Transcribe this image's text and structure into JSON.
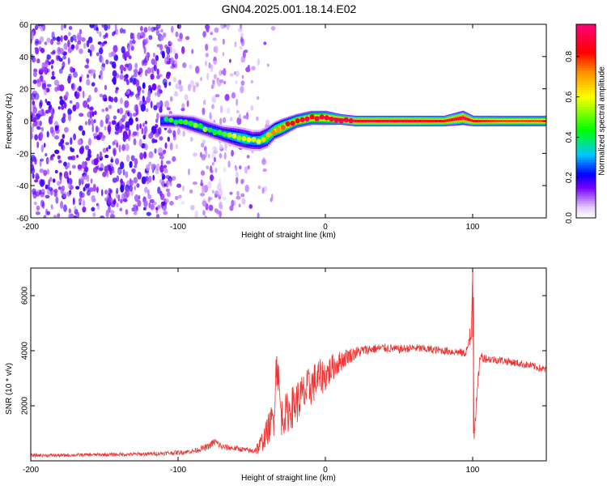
{
  "title": "GN04.2025.001.18.14.E02",
  "chart_data": [
    {
      "type": "heatmap",
      "title": "GN04.2025.001.18.14.E02",
      "xlabel": "Height of straight line (km)",
      "ylabel": "Frequency (Hz)",
      "xlim": [
        -200,
        150
      ],
      "ylim": [
        -60,
        60
      ],
      "xticks": [
        -200,
        -100,
        0,
        100
      ],
      "yticks": [
        -60,
        -40,
        -20,
        0,
        20,
        40,
        60
      ],
      "colorbar": {
        "label": "Normalized spectral amplitude",
        "range": [
          0,
          0.96
        ],
        "ticks": [
          0.0,
          0.2,
          0.4,
          0.6,
          0.8
        ],
        "colormap": [
          "#ffffff",
          "#7a00ff",
          "#0000ff",
          "#00ffff",
          "#00ff00",
          "#ffff00",
          "#ff7f00",
          "#ff0000",
          "#ff0080"
        ]
      },
      "ridge": {
        "description_free": true,
        "x": [
          -112,
          -100,
          -90,
          -80,
          -70,
          -60,
          -55,
          -50,
          -45,
          -40,
          -35,
          -30,
          -20,
          -10,
          0,
          10,
          20,
          40,
          60,
          80,
          93,
          100,
          120,
          150
        ],
        "y": [
          0,
          0,
          -2,
          -5,
          -8,
          -10,
          -11,
          -12,
          -12,
          -10,
          -6,
          -4,
          0,
          2,
          2,
          1,
          0,
          0,
          0,
          0,
          2,
          0,
          0,
          0
        ],
        "amplitude": [
          0.25,
          0.3,
          0.35,
          0.3,
          0.35,
          0.4,
          0.45,
          0.35,
          0.4,
          0.5,
          0.6,
          0.65,
          0.7,
          0.75,
          0.8,
          0.85,
          0.9,
          0.9,
          0.9,
          0.85,
          0.95,
          0.85,
          0.8,
          0.8
        ],
        "band_halfwidth_hz": [
          4,
          4,
          5,
          5,
          5,
          6,
          6,
          6,
          6,
          6,
          5,
          5,
          4,
          4,
          4,
          3,
          3,
          3,
          3,
          3,
          4,
          3,
          3,
          3
        ]
      },
      "noise_region_x": [
        -200,
        -35
      ]
    },
    {
      "type": "line",
      "xlabel": "Height of straight line (km)",
      "ylabel": "SNR (10 * v/v)",
      "xlim": [
        -200,
        150
      ],
      "ylim": [
        0,
        7000
      ],
      "xticks": [
        -200,
        -100,
        0,
        100
      ],
      "yticks": [
        2000,
        4000,
        6000
      ],
      "color": "#ee3333",
      "x": [
        -200,
        -180,
        -160,
        -140,
        -120,
        -100,
        -90,
        -80,
        -75,
        -70,
        -60,
        -50,
        -45,
        -40,
        -35,
        -33,
        -30,
        -25,
        -20,
        -15,
        -10,
        -5,
        0,
        5,
        10,
        15,
        20,
        25,
        30,
        40,
        50,
        60,
        70,
        80,
        90,
        95,
        99,
        100,
        101,
        105,
        110,
        120,
        130,
        140,
        150
      ],
      "y": [
        200,
        200,
        220,
        230,
        250,
        300,
        350,
        500,
        700,
        500,
        450,
        350,
        500,
        1000,
        1600,
        3800,
        1600,
        1800,
        2100,
        2400,
        2700,
        3000,
        3100,
        3400,
        3600,
        3800,
        3900,
        4000,
        4050,
        4100,
        4050,
        4100,
        4050,
        4000,
        3950,
        3900,
        4500,
        6900,
        1000,
        3800,
        3700,
        3650,
        3550,
        3450,
        3300
      ],
      "noise_amplitude": [
        60,
        60,
        60,
        60,
        70,
        80,
        90,
        120,
        150,
        120,
        100,
        100,
        300,
        500,
        700,
        700,
        700,
        750,
        800,
        800,
        750,
        700,
        600,
        500,
        400,
        300,
        250,
        200,
        180,
        160,
        150,
        150,
        150,
        150,
        150,
        150,
        200,
        300,
        300,
        200,
        150,
        140,
        140,
        140,
        140
      ],
      "spikes": [
        {
          "x": -33,
          "y": 3800
        },
        {
          "x": 100,
          "y": 6900
        },
        {
          "x": 100.6,
          "y": 1000
        },
        {
          "x": 98,
          "y": 4800
        }
      ]
    }
  ]
}
